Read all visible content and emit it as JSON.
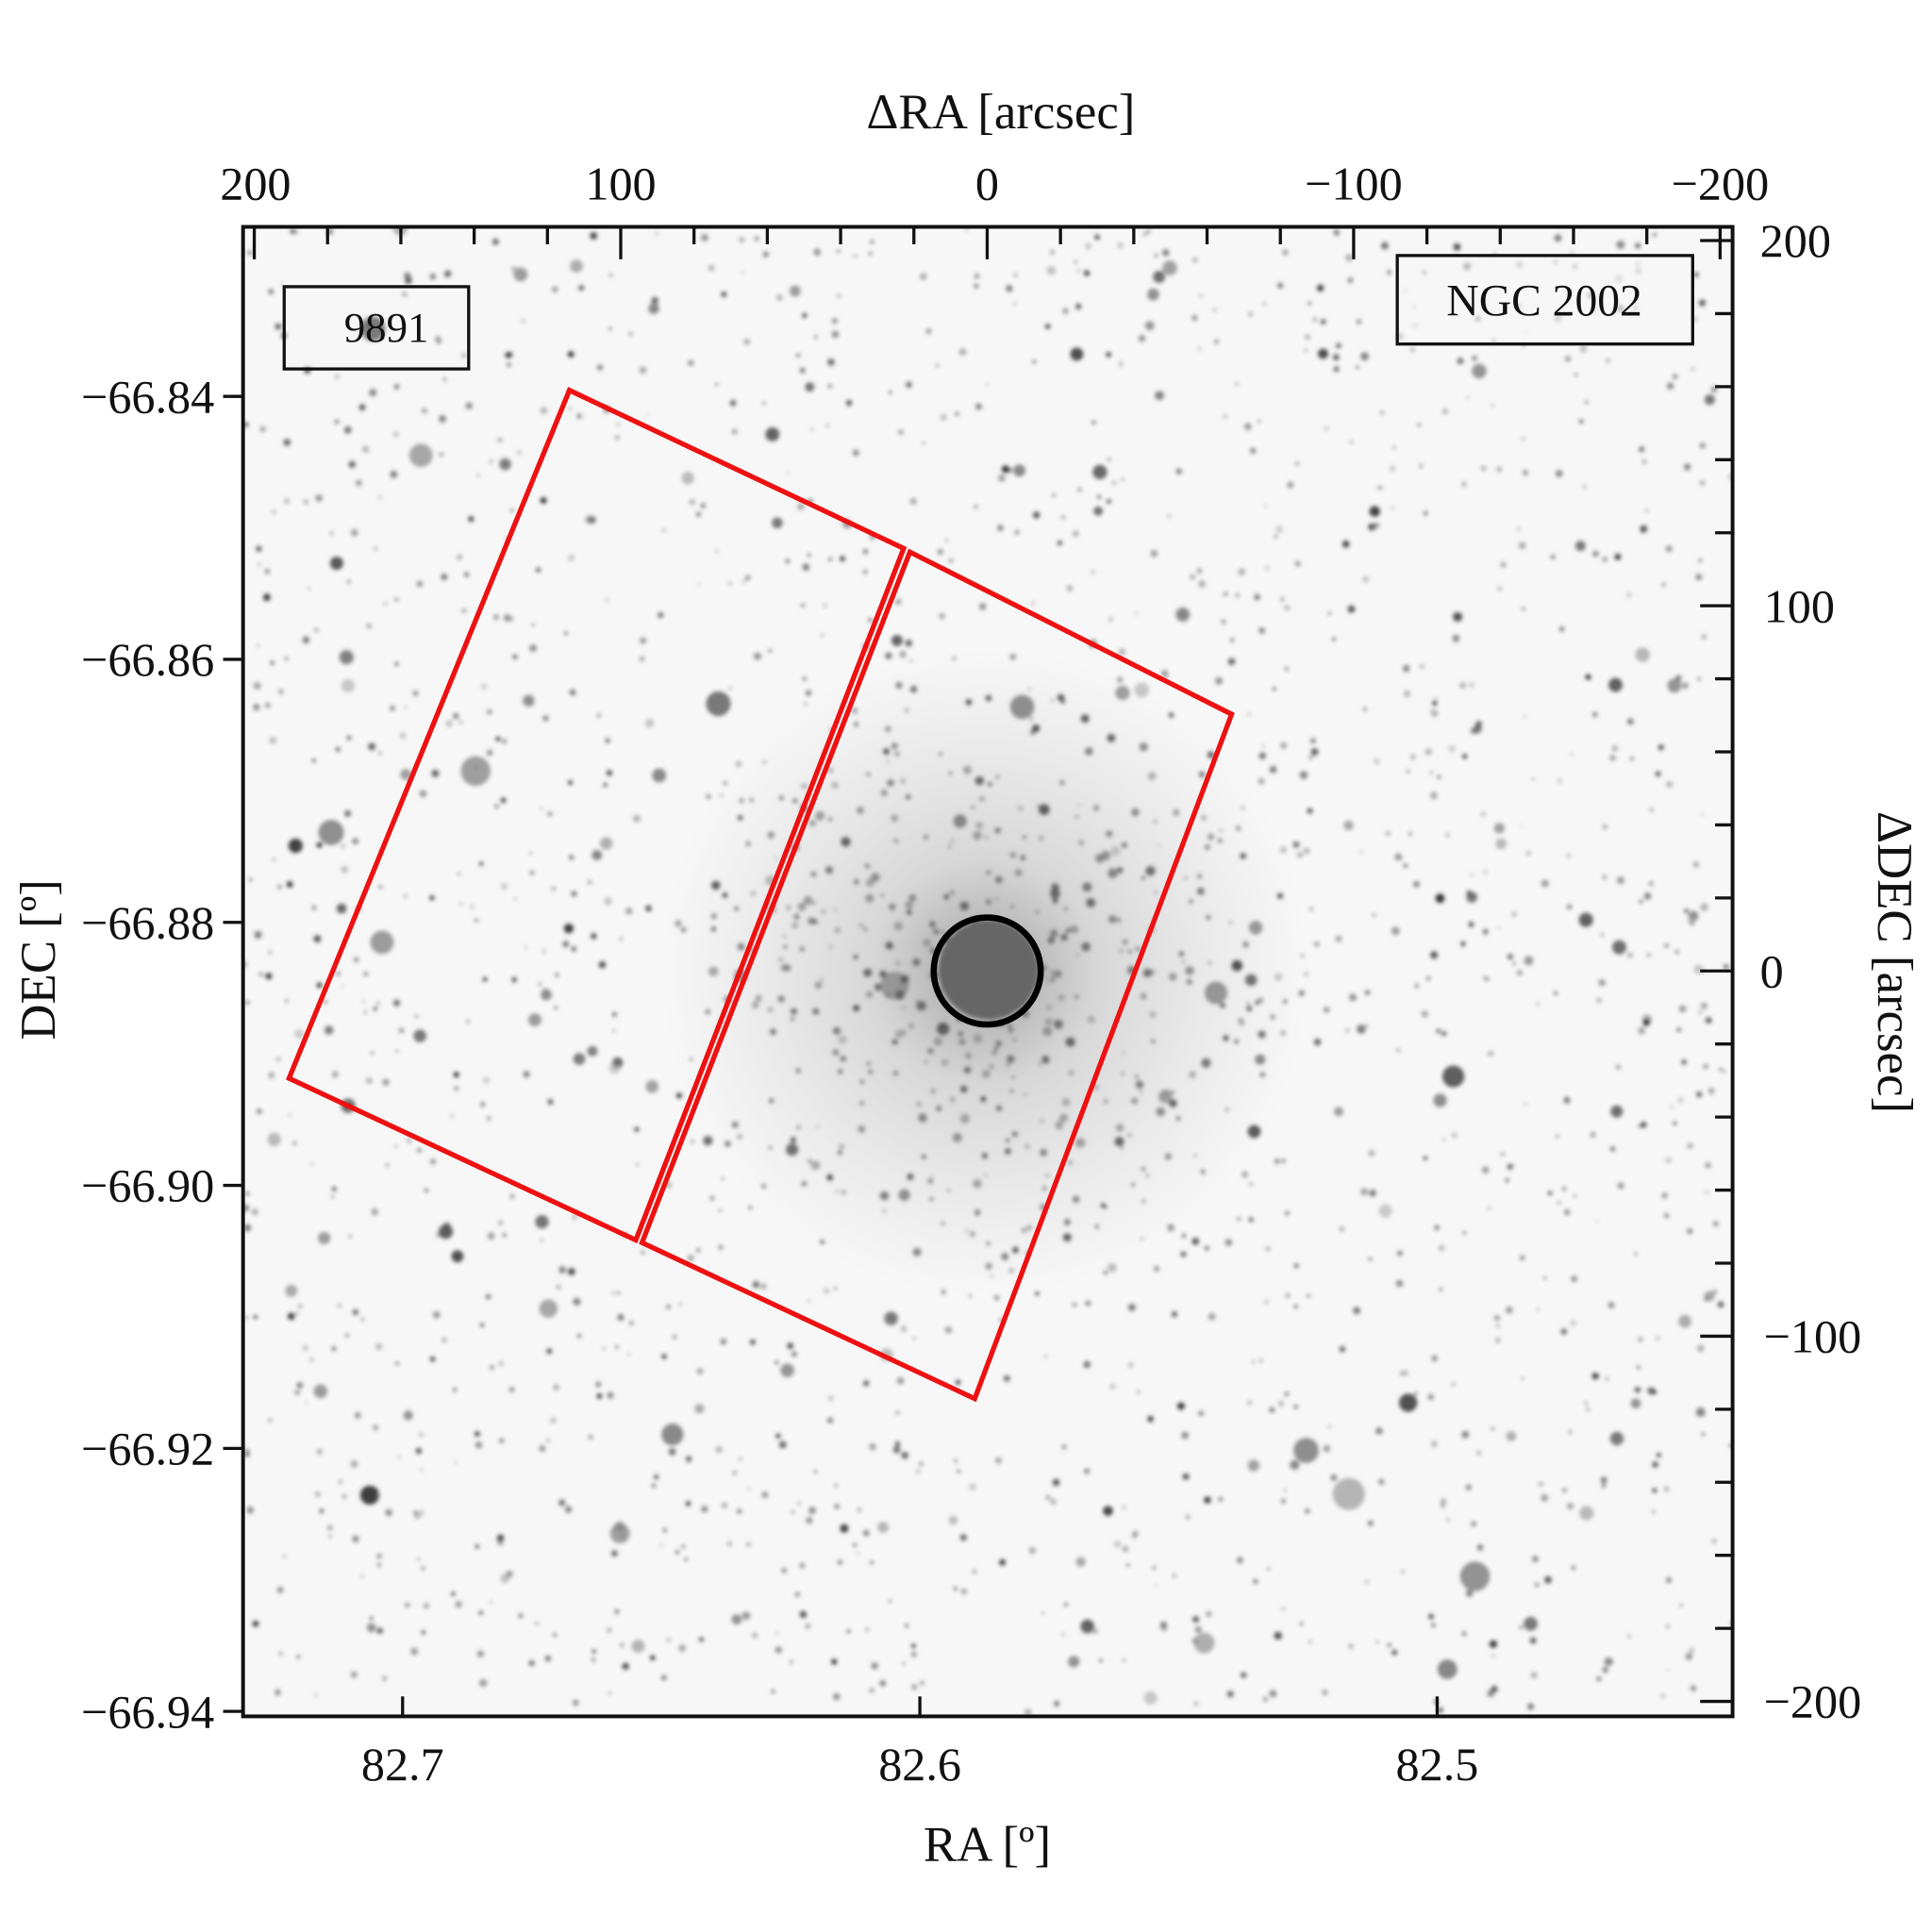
{
  "chart_data": {
    "type": "image",
    "title": "",
    "top_axis": {
      "label": "ΔRA [arcsec]",
      "range": [
        200,
        -200
      ],
      "ticks": [
        200,
        100,
        0,
        -100,
        -200
      ],
      "tick_labels": [
        "200",
        "100",
        "0",
        "−100",
        "−200"
      ],
      "minor_step": 20
    },
    "right_axis": {
      "label": "ΔDEC [arcsec]",
      "range": [
        -200,
        200
      ],
      "ticks": [
        200,
        100,
        0,
        -100,
        -200
      ],
      "tick_labels": [
        "200",
        "100",
        "0",
        "−100",
        "−200"
      ],
      "minor_step": 20
    },
    "bottom_axis": {
      "label": "RA [º]",
      "ticks": [
        82.7,
        82.6,
        82.5
      ],
      "tick_labels": [
        "82.7",
        "82.6",
        "82.5"
      ]
    },
    "left_axis": {
      "label": "DEC [º]",
      "ticks": [
        -66.84,
        -66.86,
        -66.88,
        -66.9,
        -66.92,
        -66.94
      ],
      "tick_labels": [
        "−66.84",
        "−66.86",
        "−66.88",
        "−66.90",
        "−66.92",
        "−66.94"
      ]
    },
    "overlays": {
      "footprint_color": "#ee1111",
      "footprints_arcsec": [
        [
          [
            114,
            159
          ],
          [
            22.8,
            115.7
          ],
          [
            95.9,
            -73.7
          ],
          [
            190.5,
            -29.4
          ]
        ],
        [
          [
            21.1,
            114.7
          ],
          [
            -66.7,
            70.3
          ],
          [
            3.4,
            -117.1
          ],
          [
            94.2,
            -74.4
          ]
        ]
      ],
      "circle": {
        "center_arcsec": [
          0,
          0
        ],
        "radius_arcsec": 14.6,
        "color": "#000000"
      }
    },
    "labels": {
      "program_id": "9891",
      "program_id_color": "#ee1111",
      "object_name": "NGC 2002"
    },
    "colormap": "inverted grayscale"
  }
}
